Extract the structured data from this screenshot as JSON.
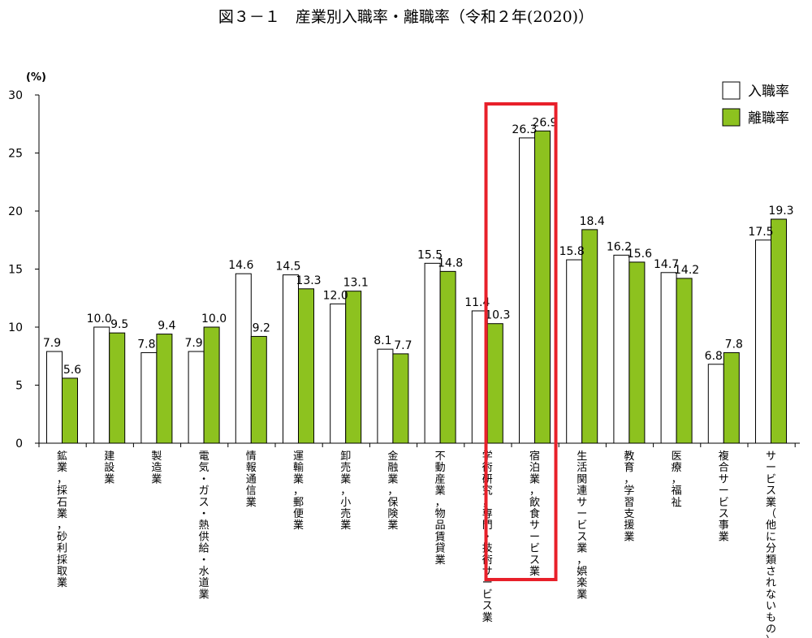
{
  "chart_data": {
    "type": "bar",
    "title": "図３－１　産業別入職率・離職率（令和２年(2020)）",
    "ylabel": "(%)",
    "ylim": [
      0,
      30
    ],
    "yticks": [
      0,
      5,
      10,
      15,
      20,
      25,
      30
    ],
    "legend_position": "top-right",
    "grid": false,
    "categories": [
      "鉱業，採石業，砂利採取業",
      "建設業",
      "製造業",
      "電気・ガス・熱供給・水道業",
      "情報通信業",
      "運輸業，郵便業",
      "卸売業，小売業",
      "金融業，保険業",
      "不動産業，物品賃貸業",
      "学術研究，専門・技術サービス業",
      "宿泊業，飲食サービス業",
      "生活関連サービス業，娯楽業",
      "教育，学習支援業",
      "医療，福祉",
      "複合サービス事業",
      "サービス業（他に分類されないもの）"
    ],
    "series": [
      {
        "name": "入職率",
        "color": "#ffffff",
        "values": [
          7.9,
          10.0,
          7.8,
          7.9,
          14.6,
          14.5,
          12.0,
          8.1,
          15.5,
          11.4,
          26.3,
          15.8,
          16.2,
          14.7,
          6.8,
          17.5
        ]
      },
      {
        "name": "離職率",
        "color": "#8dc21f",
        "values": [
          5.6,
          9.5,
          9.4,
          10.0,
          9.2,
          13.3,
          13.1,
          7.7,
          14.8,
          10.3,
          26.9,
          18.4,
          15.6,
          14.2,
          7.8,
          19.3
        ]
      }
    ],
    "highlight_category": "宿泊業，飲食サービス業",
    "highlight_color": "#e8202a"
  }
}
